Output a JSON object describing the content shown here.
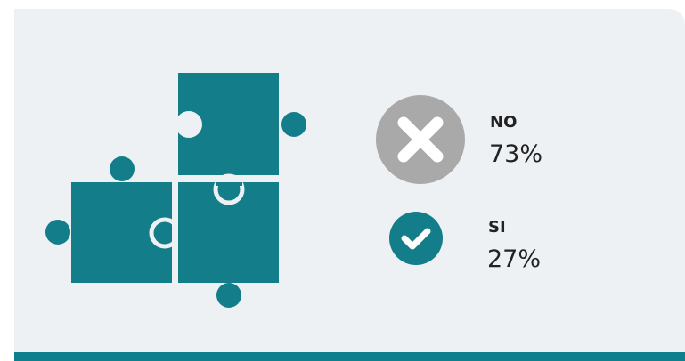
{
  "items": [
    {
      "label": "NO",
      "value": "73%"
    },
    {
      "label": "SI",
      "value": "27%"
    }
  ]
}
